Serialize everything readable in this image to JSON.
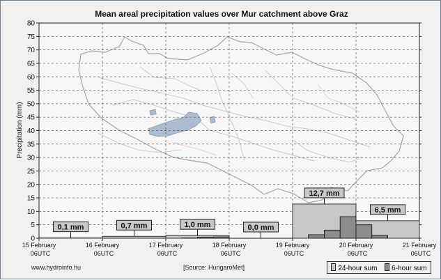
{
  "chart_data": {
    "type": "bar",
    "title": "Mean areal precipitation values over Mur catchment above Graz",
    "ylabel": "Precipitation (mm)",
    "ylim": [
      0,
      80
    ],
    "yticks": [
      0,
      5,
      10,
      15,
      20,
      25,
      30,
      35,
      40,
      45,
      50,
      55,
      60,
      65,
      70,
      75,
      80
    ],
    "grid": true,
    "xticks": [
      {
        "date": "15 February",
        "time": "06UTC"
      },
      {
        "date": "16 February",
        "time": "06UTC"
      },
      {
        "date": "17 February",
        "time": "06UTC"
      },
      {
        "date": "18 February",
        "time": "06UTC"
      },
      {
        "date": "19 February",
        "time": "06UTC"
      },
      {
        "date": "20 February",
        "time": "06UTC"
      },
      {
        "date": "21 February",
        "time": "06UTC"
      }
    ],
    "series": [
      {
        "name": "24-hour sum",
        "color": "#c8c8c8",
        "bars": [
          {
            "start": 0,
            "end": 1,
            "value": 0.1,
            "label": "0,1 mm"
          },
          {
            "start": 1,
            "end": 2,
            "value": 0.7,
            "label": "0,7 mm"
          },
          {
            "start": 2,
            "end": 3,
            "value": 1.0,
            "label": "1,0 mm"
          },
          {
            "start": 3,
            "end": 4,
            "value": 0.0,
            "label": "0,0 mm"
          },
          {
            "start": 4,
            "end": 5,
            "value": 12.7,
            "label": "12,7 mm"
          },
          {
            "start": 5,
            "end": 6,
            "value": 6.5,
            "label": "6,5 mm"
          }
        ]
      },
      {
        "name": "6-hour sum",
        "color": "#8c8c8c",
        "bars": [
          {
            "start": 2.25,
            "end": 2.5,
            "value": 0.1
          },
          {
            "start": 2.5,
            "end": 2.75,
            "value": 0.4
          },
          {
            "start": 2.75,
            "end": 3.0,
            "value": 0.5
          },
          {
            "start": 4.25,
            "end": 4.5,
            "value": 1.3
          },
          {
            "start": 4.5,
            "end": 4.75,
            "value": 3.0
          },
          {
            "start": 4.75,
            "end": 5.0,
            "value": 8.0
          },
          {
            "start": 5.0,
            "end": 5.25,
            "value": 5.0
          },
          {
            "start": 5.25,
            "end": 5.5,
            "value": 1.0
          }
        ]
      }
    ]
  },
  "footer": {
    "website": "www.hydroinfo.hu",
    "source": "[Source: HungaroMet]"
  }
}
